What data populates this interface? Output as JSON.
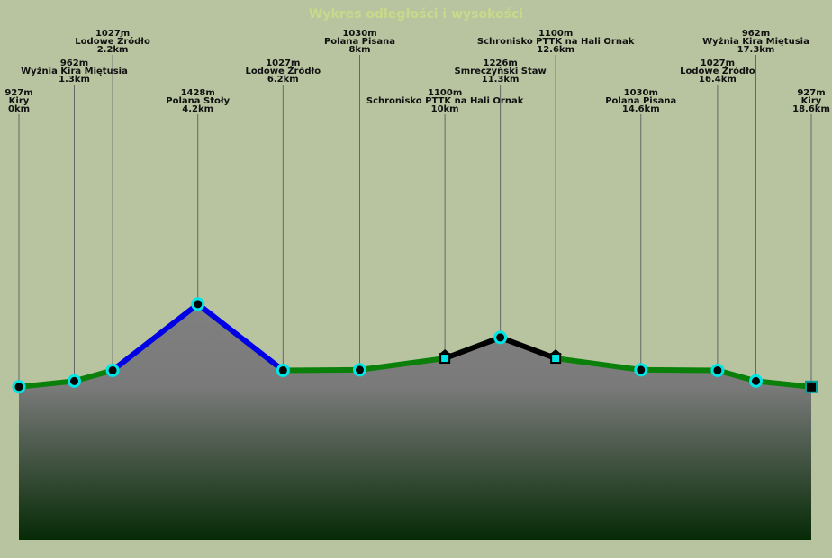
{
  "chart_data": {
    "type": "elevation-profile",
    "title": "Wykres odległości i wysokości",
    "names": [
      "Kiry",
      "Wyżnia Kira Miętusia",
      "Lodowe Źródło",
      "Polana Stoły",
      "Lodowe Źródło",
      "Polana Pisana",
      "Schronisko PTTK na Hali Ornak",
      "Smreczyński Staw",
      "Schronisko PTTK na Hali Ornak",
      "Polana Pisana",
      "Lodowe Źródło",
      "Wyżnia Kira Miętusia",
      "Kiry"
    ],
    "x": [
      0,
      1.3,
      2.2,
      4.2,
      6.2,
      8,
      10,
      11.3,
      12.6,
      14.6,
      16.4,
      17.3,
      18.6
    ],
    "x_labels": [
      "0km",
      "1.3km",
      "2.2km",
      "4.2km",
      "6.2km",
      "8km",
      "10km",
      "11.3km",
      "12.6km",
      "14.6km",
      "16.4km",
      "17.3km",
      "18.6km"
    ],
    "values": [
      927,
      962,
      1027,
      1428,
      1027,
      1030,
      1100,
      1226,
      1100,
      1030,
      1027,
      962,
      927
    ],
    "value_labels": [
      "927m",
      "962m",
      "1027m",
      "1428m",
      "1027m",
      "1030m",
      "1100m",
      "1226m",
      "1100m",
      "1030m",
      "1027m",
      "962m",
      "927m"
    ],
    "segment_colors": [
      "#0a800a",
      "#0a800a",
      "#0000e6",
      "#0000e6",
      "#0a800a",
      "#0a800a",
      "#000000",
      "#000000",
      "#0a800a",
      "#0a800a",
      "#0a800a",
      "#0a800a"
    ],
    "markers": [
      "circle",
      "circle",
      "circle",
      "circle",
      "circle",
      "circle",
      "hut",
      "circle",
      "hut",
      "circle",
      "circle",
      "circle",
      "square"
    ],
    "xlim": [
      0,
      18.6
    ],
    "ylim": [
      0,
      3268
    ]
  }
}
